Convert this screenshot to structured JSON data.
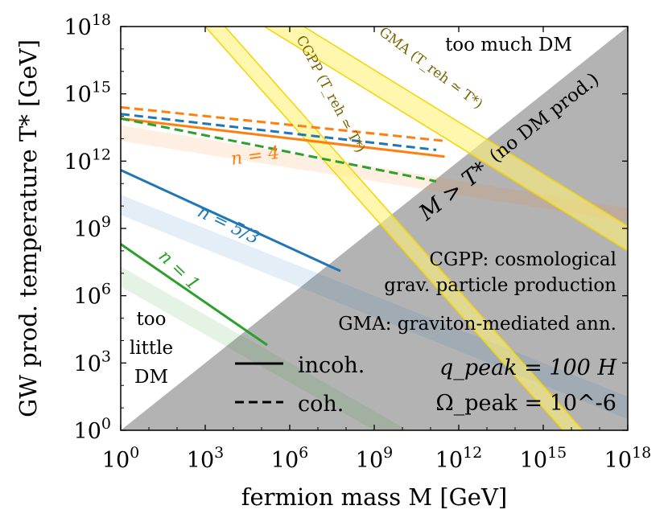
{
  "chart_data": {
    "type": "line",
    "xlabel": "fermion mass M [GeV]",
    "ylabel": "GW prod. temperature T* [GeV]",
    "x_scale": "log",
    "y_scale": "log",
    "xlim_log10": [
      0,
      18
    ],
    "ylim_log10": [
      0,
      18
    ],
    "xticks": [
      "10^0",
      "10^3",
      "10^6",
      "10^9",
      "10^12",
      "10^15",
      "10^18"
    ],
    "yticks": [
      "10^0",
      "10^3",
      "10^6",
      "10^9",
      "10^12",
      "10^15",
      "10^18"
    ],
    "tick_exponents": [
      0,
      3,
      6,
      9,
      12,
      15,
      18
    ],
    "colors": {
      "n1": "#2ca02c",
      "n53": "#1f77b4",
      "n4": "#ff7f0e",
      "band": "#fff176",
      "band_edge": "#f5d400",
      "excluded": "#b3b3b3"
    },
    "regions": {
      "too_much": "too much DM",
      "too_little": [
        "too",
        "little",
        "DM"
      ],
      "diag": "M > T*",
      "diag_sub": "(no DM prod.)"
    },
    "series": [
      {
        "key": "n1",
        "name": "n = 1",
        "style": "solid",
        "x_log10": [
          0,
          5.2
        ],
        "y_log10": [
          8.3,
          3.8
        ],
        "band_upper": [
          [
            0,
            7.3
          ],
          [
            10.2,
            0
          ]
        ],
        "band_lower": [
          [
            0,
            6.4
          ],
          [
            9.0,
            0
          ]
        ]
      },
      {
        "key": "n53",
        "name": "n = 5/3",
        "style": "solid",
        "x_log10": [
          0,
          7.8
        ],
        "y_log10": [
          11.6,
          7.1
        ],
        "band_upper": [
          [
            0,
            10.5
          ],
          [
            18,
            1.5
          ]
        ],
        "band_lower": [
          [
            0,
            9.6
          ],
          [
            18,
            0.5
          ]
        ]
      },
      {
        "key": "n4",
        "name": "n = 4",
        "style": "solid",
        "x_log10": [
          0,
          11.5
        ],
        "y_log10": [
          13.9,
          12.2
        ],
        "band_upper": [
          [
            0,
            13.6
          ],
          [
            18,
            9.9
          ]
        ],
        "band_lower": [
          [
            0,
            12.9
          ],
          [
            18,
            9.3
          ]
        ]
      },
      {
        "key": "n53",
        "name": "",
        "style": "dashed",
        "x_log10": [
          0,
          11.2
        ],
        "y_log10": [
          14.1,
          12.5
        ]
      },
      {
        "key": "n4",
        "name": "",
        "style": "dashed",
        "x_log10": [
          0,
          11.5
        ],
        "y_log10": [
          14.4,
          12.9
        ]
      },
      {
        "key": "n1",
        "name": "",
        "style": "dashed",
        "x_log10": [
          0,
          11.2
        ],
        "y_log10": [
          13.9,
          11.1
        ]
      }
    ],
    "bands": [
      {
        "label": "CGPP (T_reh ≃ T*)",
        "upper": [
          [
            3.7,
            18
          ],
          [
            16.4,
            0
          ]
        ],
        "lower": [
          [
            3.0,
            18
          ],
          [
            15.7,
            0
          ]
        ]
      },
      {
        "label": "GMA (T_reh ≃ T*)",
        "upper": [
          [
            6.5,
            18
          ],
          [
            18,
            9.1
          ]
        ],
        "lower": [
          [
            5.1,
            18
          ],
          [
            18,
            8.0
          ]
        ]
      }
    ],
    "legend": {
      "solid": "incoh.",
      "dashed": "coh."
    },
    "annotations": {
      "cgpp_1": "CGPP: cosmological",
      "cgpp_2": "grav. particle production",
      "gma": "GMA: graviton-mediated ann.",
      "qpeak": "q_peak = 100 H",
      "omega": "Ω_peak = 10^-6"
    }
  }
}
